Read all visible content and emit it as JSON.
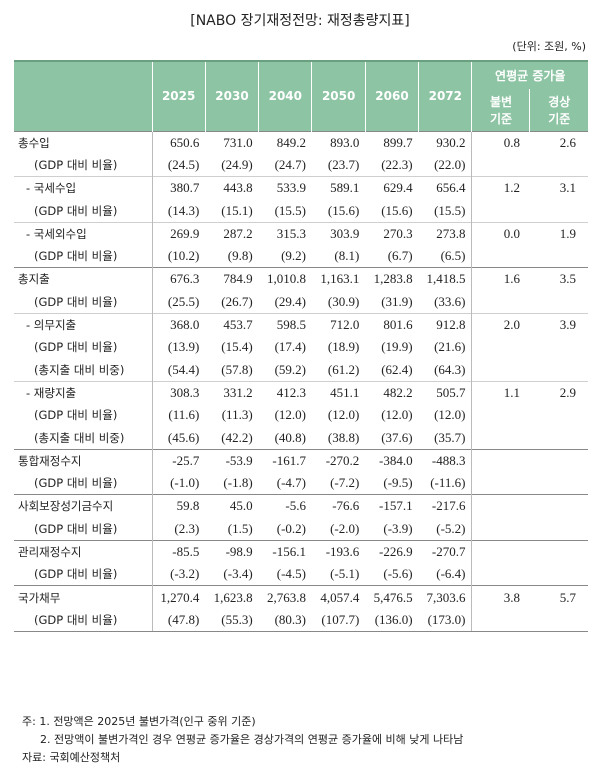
{
  "title": "[NABO 장기재정전망: 재정총량지표]",
  "unit": "(단위: 조원, %)",
  "table": {
    "header": {
      "years": [
        "2025",
        "2030",
        "2040",
        "2050",
        "2060",
        "2072"
      ],
      "growth": "연평균 증가율",
      "growth_cols": [
        "불변 기준",
        "경상 기준"
      ]
    },
    "groups": [
      {
        "blocks": [
          {
            "rows": [
              {
                "label": "총수입",
                "cells": [
                  "650.6",
                  "731.0",
                  "849.2",
                  "893.0",
                  "899.7",
                  "930.2",
                  "0.8",
                  "2.6"
                ]
              },
              {
                "label": "(GDP 대비 비율)",
                "cells": [
                  "(24.5)",
                  "(24.9)",
                  "(24.7)",
                  "(23.7)",
                  "(22.3)",
                  "(22.0)"
                ]
              }
            ]
          },
          {
            "rows": [
              {
                "label": "- 국세수입",
                "cells": [
                  "380.7",
                  "443.8",
                  "533.9",
                  "589.1",
                  "629.4",
                  "656.4",
                  "1.2",
                  "3.1"
                ]
              },
              {
                "label": "(GDP 대비 비율)",
                "cells": [
                  "(14.3)",
                  "(15.1)",
                  "(15.5)",
                  "(15.6)",
                  "(15.6)",
                  "(15.5)"
                ]
              }
            ]
          },
          {
            "rows": [
              {
                "label": "- 국세외수입",
                "cells": [
                  "269.9",
                  "287.2",
                  "315.3",
                  "303.9",
                  "270.3",
                  "273.8",
                  "0.0",
                  "1.9"
                ]
              },
              {
                "label": "(GDP 대비 비율)",
                "cells": [
                  "(10.2)",
                  "(9.8)",
                  "(9.2)",
                  "(8.1)",
                  "(6.7)",
                  "(6.5)"
                ]
              }
            ]
          }
        ]
      },
      {
        "blocks": [
          {
            "rows": [
              {
                "label": "총지출",
                "cells": [
                  "676.3",
                  "784.9",
                  "1,010.8",
                  "1,163.1",
                  "1,283.8",
                  "1,418.5",
                  "1.6",
                  "3.5"
                ]
              },
              {
                "label": "(GDP 대비 비율)",
                "cells": [
                  "(25.5)",
                  "(26.7)",
                  "(29.4)",
                  "(30.9)",
                  "(31.9)",
                  "(33.6)"
                ]
              }
            ]
          },
          {
            "rows": [
              {
                "label": "- 의무지출",
                "cells": [
                  "368.0",
                  "453.7",
                  "598.5",
                  "712.0",
                  "801.6",
                  "912.8",
                  "2.0",
                  "3.9"
                ]
              },
              {
                "label": "(GDP 대비 비율)",
                "cells": [
                  "(13.9)",
                  "(15.4)",
                  "(17.4)",
                  "(18.9)",
                  "(19.9)",
                  "(21.6)"
                ]
              },
              {
                "label": "(총지출 대비 비중)",
                "cells": [
                  "(54.4)",
                  "(57.8)",
                  "(59.2)",
                  "(61.2)",
                  "(62.4)",
                  "(64.3)"
                ]
              }
            ]
          },
          {
            "rows": [
              {
                "label": "- 재량지출",
                "cells": [
                  "308.3",
                  "331.2",
                  "412.3",
                  "451.1",
                  "482.2",
                  "505.7",
                  "1.1",
                  "2.9"
                ]
              },
              {
                "label": "(GDP 대비 비율)",
                "cells": [
                  "(11.6)",
                  "(11.3)",
                  "(12.0)",
                  "(12.0)",
                  "(12.0)",
                  "(12.0)"
                ]
              },
              {
                "label": "(총지출 대비 비중)",
                "cells": [
                  "(45.6)",
                  "(42.2)",
                  "(40.8)",
                  "(38.8)",
                  "(37.6)",
                  "(35.7)"
                ]
              }
            ]
          }
        ]
      },
      {
        "blocks": [
          {
            "rows": [
              {
                "label": "통합재정수지",
                "cells": [
                  "-25.7",
                  "-53.9",
                  "-161.7",
                  "-270.2",
                  "-384.0",
                  "-488.3"
                ]
              },
              {
                "label": "(GDP 대비 비율)",
                "cells": [
                  "(-1.0)",
                  "(-1.8)",
                  "(-4.7)",
                  "(-7.2)",
                  "(-9.5)",
                  "(-11.6)"
                ]
              }
            ]
          }
        ]
      },
      {
        "blocks": [
          {
            "rows": [
              {
                "label": "사회보장성기금수지",
                "cells": [
                  "59.8",
                  "45.0",
                  "-5.6",
                  "-76.6",
                  "-157.1",
                  "-217.6"
                ]
              },
              {
                "label": "(GDP 대비 비율)",
                "cells": [
                  "(2.3)",
                  "(1.5)",
                  "(-0.2)",
                  "(-2.0)",
                  "(-3.9)",
                  "(-5.2)"
                ]
              }
            ]
          }
        ]
      },
      {
        "blocks": [
          {
            "rows": [
              {
                "label": "관리재정수지",
                "cells": [
                  "-85.5",
                  "-98.9",
                  "-156.1",
                  "-193.6",
                  "-226.9",
                  "-270.7"
                ]
              },
              {
                "label": "(GDP 대비 비율)",
                "cells": [
                  "(-3.2)",
                  "(-3.4)",
                  "(-4.5)",
                  "(-5.1)",
                  "(-5.6)",
                  "(-6.4)"
                ]
              }
            ]
          }
        ]
      },
      {
        "blocks": [
          {
            "rows": [
              {
                "label": "국가채무",
                "cells": [
                  "1,270.4",
                  "1,623.8",
                  "2,763.8",
                  "4,057.4",
                  "5,476.5",
                  "7,303.6",
                  "3.8",
                  "5.7"
                ]
              },
              {
                "label": "(GDP 대비 비율)",
                "cells": [
                  "(47.8)",
                  "(55.3)",
                  "(80.3)",
                  "(107.7)",
                  "(136.0)",
                  "(173.0)"
                ]
              }
            ]
          }
        ]
      }
    ]
  },
  "notes": [
    "주: 1. 전망액은 2025년 불변가격(인구 중위 기준)",
    "2. 전망액이 불변가격인 경우 연평균 증가율은 경상가격의 연평균 증가율에 비해 낮게 나타남"
  ],
  "source": "자료: 국회예산정책처"
}
